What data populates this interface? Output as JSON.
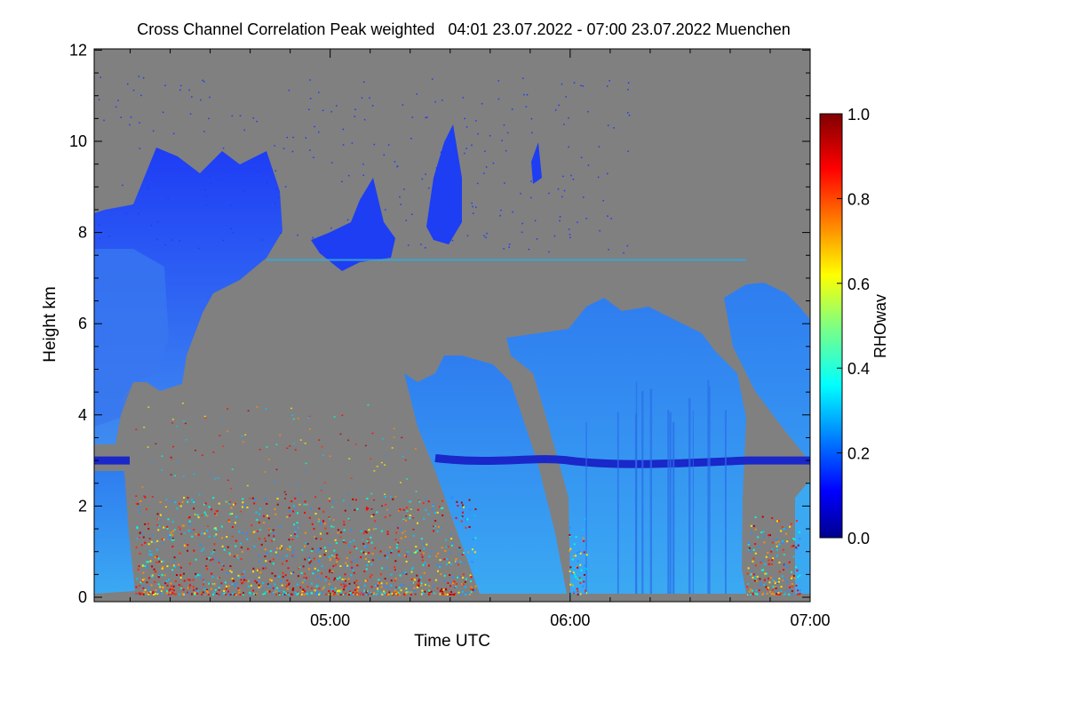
{
  "chart_data": {
    "type": "heatmap",
    "title": "Cross Channel Correlation Peak weighted   04:01 23.07.2022 - 07:00 23.07.2022 Muenchen",
    "xlabel": "Time UTC",
    "ylabel": "Height km",
    "xlim": [
      "04:01",
      "07:00"
    ],
    "ylim": [
      0,
      12
    ],
    "x_ticks": [
      "05:00",
      "06:00",
      "07:00"
    ],
    "y_ticks": [
      "0",
      "2",
      "4",
      "6",
      "8",
      "10",
      "12"
    ],
    "colorbar": {
      "label": "RHOwav",
      "range": [
        0.0,
        1.0
      ],
      "ticks": [
        "0.0",
        "0.2",
        "0.4",
        "0.6",
        "0.8",
        "1.0"
      ],
      "colormap": "jet"
    },
    "background_color": "#808080",
    "features": {
      "cirrus_top_km": 10.2,
      "aerosol_layer_height_km": 3.0,
      "thin_layer_height_km": 7.4,
      "precipitation_streaks": [
        {
          "from": "04:01",
          "to": "04:12"
        },
        {
          "from": "05:35",
          "to": "05:53"
        },
        {
          "from": "06:00",
          "to": "06:45"
        },
        {
          "from": "06:58",
          "to": "07:00"
        }
      ],
      "cloud_top_km": [
        {
          "time": "04:05",
          "height": 8.2
        },
        {
          "time": "04:40",
          "height": 7.2
        },
        {
          "time": "06:10",
          "height": 6.4
        },
        {
          "time": "06:50",
          "height": 6.8
        }
      ]
    }
  }
}
